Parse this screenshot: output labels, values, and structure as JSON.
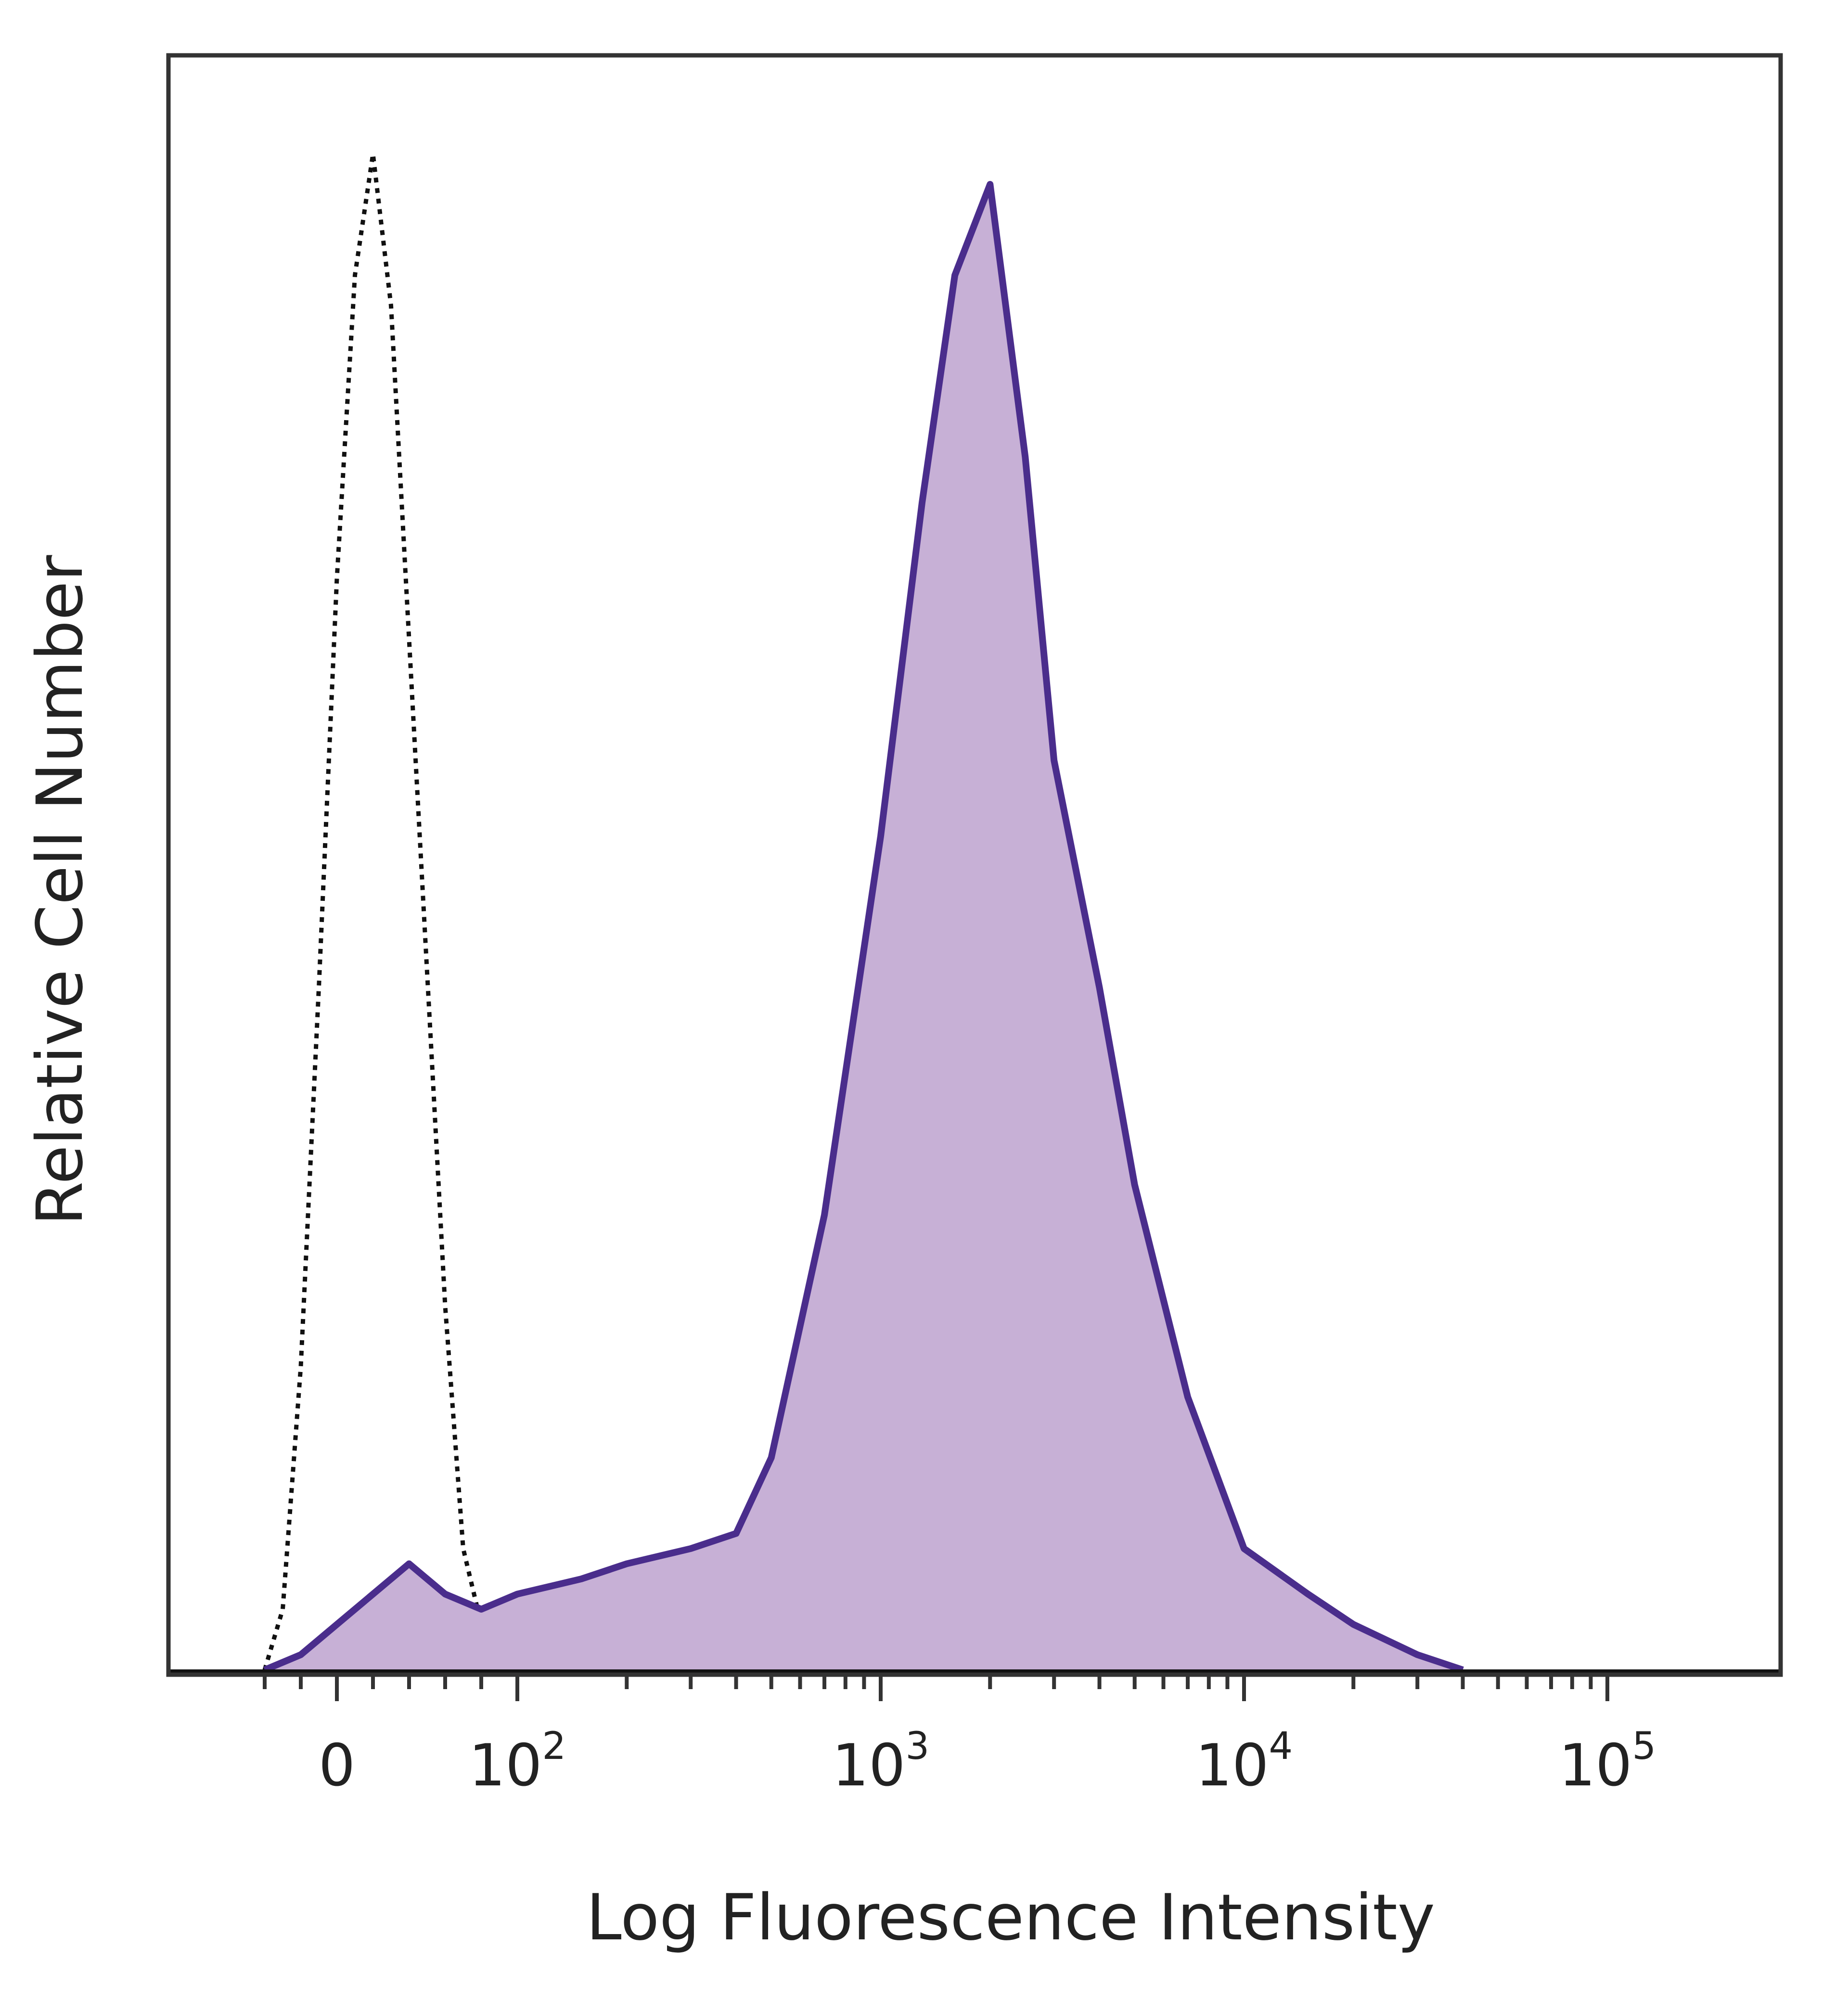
{
  "chart_data": {
    "type": "area",
    "xlabel": "Log Fluorescence Intensity",
    "ylabel": "Relative Cell Number",
    "x_scale": "biexponential (log above 10^2, linear near 0)",
    "y_ticks_shown": false,
    "xlim": [
      -50,
      300000
    ],
    "ylim": [
      0,
      1.0
    ],
    "x_ticks": [
      {
        "value": 0,
        "base": "0",
        "exp": ""
      },
      {
        "value": 100,
        "base": "10",
        "exp": "2"
      },
      {
        "value": 1000,
        "base": "10",
        "exp": "3"
      },
      {
        "value": 10000,
        "base": "10",
        "exp": "4"
      },
      {
        "value": 100000,
        "base": "10",
        "exp": "5"
      }
    ],
    "series": [
      {
        "style": "dotted-outline",
        "color": "#111111",
        "x": [
          -40,
          -30,
          -20,
          -10,
          0,
          10,
          20,
          30,
          40,
          50,
          60,
          70,
          80,
          90,
          100
        ],
        "y": [
          0.0,
          0.04,
          0.2,
          0.45,
          0.72,
          0.92,
          1.0,
          0.9,
          0.68,
          0.46,
          0.24,
          0.08,
          0.03,
          0.01,
          0.0
        ]
      },
      {
        "style": "filled-outline",
        "color": "#4a2d8c",
        "fill": "#c7b0d6",
        "x": [
          -40,
          -20,
          0,
          20,
          40,
          60,
          80,
          100,
          150,
          200,
          300,
          400,
          500,
          700,
          1000,
          1300,
          1600,
          2000,
          2500,
          3000,
          4000,
          5000,
          7000,
          10000,
          15000,
          20000,
          30000,
          40000
        ],
        "y": [
          0.0,
          0.01,
          0.03,
          0.05,
          0.07,
          0.05,
          0.04,
          0.05,
          0.06,
          0.07,
          0.08,
          0.09,
          0.14,
          0.3,
          0.55,
          0.77,
          0.92,
          0.98,
          0.8,
          0.6,
          0.45,
          0.32,
          0.18,
          0.08,
          0.05,
          0.03,
          0.01,
          0.0
        ]
      }
    ]
  }
}
